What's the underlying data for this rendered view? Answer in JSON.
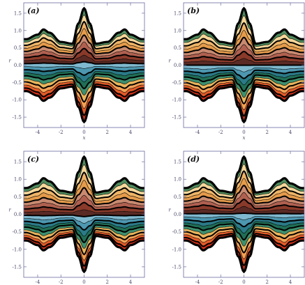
{
  "chart_data": [
    {
      "type": "area",
      "panel": "(a)",
      "xlabel": "x",
      "ylabel": "r",
      "xlim": [
        -5.2,
        5.2
      ],
      "ylim": [
        -1.8,
        1.8
      ],
      "xticks": [
        -4,
        -2,
        0,
        2,
        4
      ],
      "yticks": [
        -1.5,
        -1.0,
        -0.5,
        0.0,
        0.5,
        1.0,
        1.5
      ],
      "x": [
        -5.0,
        -4.0,
        -3.5,
        -3.0,
        -2.0,
        -1.0,
        -0.5,
        0.0,
        0.5,
        1.0,
        2.0,
        3.0,
        3.5,
        4.0,
        5.0
      ],
      "upper_boundary": [
        0.75,
        0.88,
        1.03,
        0.94,
        0.67,
        0.62,
        1.2,
        1.64,
        1.2,
        0.62,
        0.67,
        0.94,
        1.03,
        0.88,
        0.75
      ],
      "lower_boundary": [
        -0.75,
        -0.88,
        -1.03,
        -0.94,
        -0.67,
        -0.62,
        -1.2,
        -1.64,
        -1.2,
        -0.62,
        -0.67,
        -0.94,
        -1.03,
        -0.88,
        -0.75
      ]
    },
    {
      "type": "area",
      "panel": "(b)",
      "xlabel": "x",
      "ylabel": "r",
      "xlim": [
        -5.2,
        5.2
      ],
      "ylim": [
        -1.8,
        1.8
      ],
      "xticks": [
        -4,
        -2,
        0,
        2,
        4
      ],
      "yticks": [
        -1.5,
        -1.0,
        -0.5,
        0.0,
        0.5,
        1.0,
        1.5
      ],
      "x": [
        -5.0,
        -4.0,
        -3.5,
        -3.0,
        -2.0,
        -1.0,
        -0.5,
        0.0,
        0.5,
        1.0,
        2.0,
        3.0,
        3.5,
        4.0,
        5.0
      ],
      "upper_boundary": [
        0.75,
        0.88,
        1.03,
        0.94,
        0.67,
        0.62,
        1.2,
        1.64,
        1.2,
        0.62,
        0.67,
        0.94,
        1.03,
        0.88,
        0.75
      ],
      "lower_boundary": [
        -0.75,
        -0.88,
        -1.03,
        -0.94,
        -0.67,
        -0.62,
        -1.2,
        -1.64,
        -1.2,
        -0.62,
        -0.67,
        -0.94,
        -1.03,
        -0.88,
        -0.75
      ]
    },
    {
      "type": "area",
      "panel": "(c)",
      "xlabel": "x",
      "ylabel": "r",
      "xlim": [
        -5.2,
        5.2
      ],
      "ylim": [
        -1.8,
        1.8
      ],
      "xticks": [
        -4,
        -2,
        0,
        2,
        4
      ],
      "yticks": [
        -1.5,
        -1.0,
        -0.5,
        0.0,
        0.5,
        1.0,
        1.5
      ],
      "x": [
        -5.0,
        -4.0,
        -3.5,
        -3.0,
        -2.0,
        -1.0,
        -0.5,
        0.0,
        0.5,
        1.0,
        2.0,
        3.0,
        3.5,
        4.0,
        5.0
      ],
      "upper_boundary": [
        0.75,
        0.88,
        1.03,
        0.94,
        0.67,
        0.62,
        1.2,
        1.64,
        1.2,
        0.62,
        0.67,
        0.94,
        1.03,
        0.88,
        0.75
      ],
      "lower_boundary": [
        -0.75,
        -0.88,
        -1.03,
        -0.94,
        -0.67,
        -0.62,
        -1.2,
        -1.64,
        -1.2,
        -0.62,
        -0.67,
        -0.94,
        -1.03,
        -0.88,
        -0.75
      ]
    },
    {
      "type": "area",
      "panel": "(d)",
      "xlabel": "x",
      "ylabel": "r",
      "xlim": [
        -5.2,
        5.2
      ],
      "ylim": [
        -1.8,
        1.8
      ],
      "xticks": [
        -4,
        -2,
        0,
        2,
        4
      ],
      "yticks": [
        -1.5,
        -1.0,
        -0.5,
        0.0,
        0.5,
        1.0,
        1.5
      ],
      "x": [
        -5.0,
        -4.0,
        -3.5,
        -3.0,
        -2.0,
        -1.0,
        -0.5,
        0.0,
        0.5,
        1.0,
        2.0,
        3.0,
        3.5,
        4.0,
        5.0
      ],
      "upper_boundary": [
        0.75,
        0.88,
        1.03,
        0.94,
        0.67,
        0.62,
        1.2,
        1.64,
        1.2,
        0.62,
        0.67,
        0.94,
        1.03,
        0.88,
        0.75
      ],
      "lower_boundary": [
        -0.75,
        -0.88,
        -1.03,
        -0.94,
        -0.67,
        -0.62,
        -1.2,
        -1.64,
        -1.2,
        -0.62,
        -0.67,
        -0.94,
        -1.03,
        -0.88,
        -0.75
      ]
    }
  ],
  "colors": {
    "axis": "#6a6aa0",
    "band_fills_top_to_bottom": [
      "#4f8a5d",
      "#f6d79a",
      "#eeb466",
      "#e59b4b",
      "#c98a70",
      "#b06050",
      "#8a3a2a",
      "#5a2a24",
      "#7fb9cf",
      "#4d97b0",
      "#2b7a88",
      "#1f6e55",
      "#3d8f6e",
      "#e9b55c",
      "#f3a255",
      "#e25a28",
      "#d43018"
    ],
    "band_edge": "#000000"
  }
}
